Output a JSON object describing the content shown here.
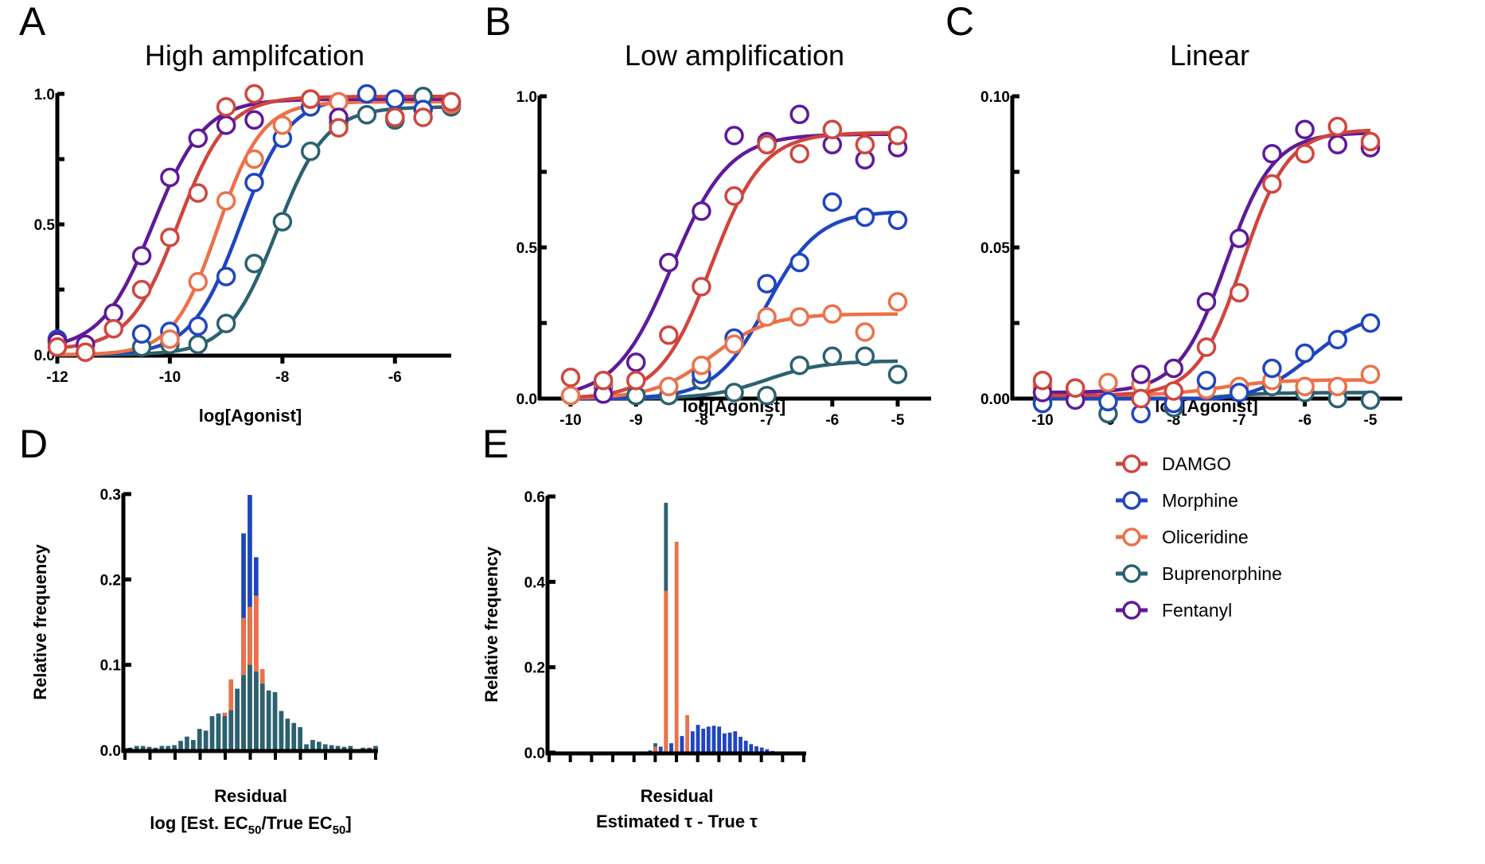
{
  "colors": {
    "DAMGO": "#d0453d",
    "Morphine": "#1f45c0",
    "Oliceridine": "#ec7149",
    "Buprenorphine": "#2b6170",
    "Fentanyl": "#5e1a9a"
  },
  "legend": {
    "entries": [
      "DAMGO",
      "Morphine",
      "Oliceridine",
      "Buprenorphine",
      "Fentanyl"
    ]
  },
  "chart_data": [
    {
      "id": "A",
      "letter": "A",
      "type": "scatter",
      "title": "High amplifcation",
      "xlabel": "log[Agonist]",
      "ylabel": "",
      "xlim": [
        -12,
        -5
      ],
      "ylim": [
        0,
        1.0
      ],
      "xticks": [
        -12,
        -10,
        -8,
        -6
      ],
      "xtick_labels": [
        "-12",
        "-10",
        "-8",
        "-6"
      ],
      "yticks": [
        0,
        0.25,
        0.5,
        0.75,
        1.0
      ],
      "ytick_labels": [
        "0.0",
        "",
        "0.5",
        "",
        "1.0"
      ],
      "series": [
        {
          "name": "Buprenorphine",
          "fit": {
            "bottom": 0,
            "top": 0.95,
            "logEC50": -8.1,
            "hill": 1.0
          },
          "x": [
            -10.5,
            -10,
            -9.5,
            -9,
            -8.5,
            -8,
            -7.5,
            -7,
            -6.5,
            -6,
            -5.5,
            -5
          ],
          "y": [
            0.03,
            0.04,
            0.04,
            0.12,
            0.35,
            0.51,
            0.78,
            0.89,
            0.92,
            0.9,
            0.99,
            0.95
          ]
        },
        {
          "name": "Morphine",
          "fit": {
            "bottom": 0,
            "top": 0.99,
            "logEC50": -8.75,
            "hill": 1.0
          },
          "x": [
            -12,
            -10.5,
            -10,
            -9.5,
            -9,
            -8.5,
            -8,
            -7.5,
            -6.5,
            -6,
            -5.5,
            -5
          ],
          "y": [
            0.06,
            0.08,
            0.09,
            0.11,
            0.3,
            0.66,
            0.83,
            0.95,
            1.0,
            0.98,
            0.94,
            0.96
          ]
        },
        {
          "name": "Oliceridine",
          "fit": {
            "bottom": 0,
            "top": 0.97,
            "logEC50": -9.15,
            "hill": 1.1
          },
          "x": [
            -10,
            -9.5,
            -9,
            -8.5,
            -8,
            -7.5,
            -7,
            -6,
            -5
          ],
          "y": [
            0.06,
            0.28,
            0.59,
            0.75,
            0.88,
            0.98,
            0.97,
            0.91,
            0.96
          ]
        },
        {
          "name": "Fentanyl",
          "fit": {
            "bottom": 0.02,
            "top": 0.98,
            "logEC50": -10.3,
            "hill": 0.95
          },
          "x": [
            -12,
            -11.5,
            -11,
            -10.5,
            -10,
            -9.5,
            -9,
            -8.5,
            -7,
            -5
          ],
          "y": [
            0.05,
            0.04,
            0.16,
            0.38,
            0.68,
            0.83,
            0.88,
            0.9,
            0.91,
            0.97
          ]
        },
        {
          "name": "DAMGO",
          "fit": {
            "bottom": 0.02,
            "top": 0.99,
            "logEC50": -9.85,
            "hill": 1.0
          },
          "x": [
            -12,
            -11.5,
            -11,
            -10.5,
            -10,
            -9.5,
            -9,
            -8.5,
            -7.5,
            -7,
            -6,
            -5.5,
            -5
          ],
          "y": [
            0.03,
            0.01,
            0.1,
            0.25,
            0.45,
            0.62,
            0.95,
            1.0,
            0.98,
            0.87,
            0.91,
            0.91,
            0.97
          ]
        }
      ]
    },
    {
      "id": "B",
      "letter": "B",
      "type": "scatter",
      "title": "Low amplification",
      "xlabel": "log[Agonist]",
      "ylabel": "",
      "xlim": [
        -10.35,
        -4.5
      ],
      "ylim": [
        0,
        1.0
      ],
      "xticks": [
        -10,
        -9,
        -8,
        -7,
        -6,
        -5
      ],
      "xtick_labels": [
        "-10",
        "-9",
        "-8",
        "-7",
        "-6",
        "-5"
      ],
      "yticks": [
        0,
        0.25,
        0.5,
        0.75,
        1.0
      ],
      "ytick_labels": [
        "0.0",
        "",
        "0.5",
        "",
        "1.0"
      ],
      "series": [
        {
          "name": "Buprenorphine",
          "fit": {
            "bottom": 0,
            "top": 0.125,
            "logEC50": -7.0,
            "hill": 1.0
          },
          "x": [
            -9,
            -8.5,
            -8,
            -7.5,
            -7,
            -6.5,
            -6,
            -5.5,
            -5
          ],
          "y": [
            0.01,
            0.01,
            0.06,
            0.02,
            0.01,
            0.11,
            0.14,
            0.14,
            0.08
          ]
        },
        {
          "name": "Morphine",
          "fit": {
            "bottom": 0,
            "top": 0.62,
            "logEC50": -7.0,
            "hill": 1.1
          },
          "x": [
            -9.5,
            -8,
            -7.5,
            -7,
            -6.5,
            -6,
            -5.5,
            -5
          ],
          "y": [
            0.04,
            0.08,
            0.2,
            0.38,
            0.45,
            0.65,
            0.6,
            0.59
          ]
        },
        {
          "name": "Oliceridine",
          "fit": {
            "bottom": 0,
            "top": 0.28,
            "logEC50": -7.85,
            "hill": 1.0
          },
          "x": [
            -10,
            -9.5,
            -8.5,
            -8,
            -7.5,
            -7,
            -6.5,
            -6,
            -5.5,
            -5
          ],
          "y": [
            0.01,
            0.05,
            0.04,
            0.11,
            0.18,
            0.27,
            0.27,
            0.28,
            0.22,
            0.32
          ]
        },
        {
          "name": "Fentanyl",
          "fit": {
            "bottom": 0,
            "top": 0.875,
            "logEC50": -8.45,
            "hill": 1.0
          },
          "x": [
            -9.5,
            -9,
            -8.5,
            -8,
            -7.5,
            -7,
            -6.5,
            -6,
            -5.5,
            -5
          ],
          "y": [
            0.015,
            0.12,
            0.45,
            0.62,
            0.87,
            0.85,
            0.94,
            0.84,
            0.79,
            0.83
          ]
        },
        {
          "name": "DAMGO",
          "fit": {
            "bottom": 0,
            "top": 0.88,
            "logEC50": -7.85,
            "hill": 1.1
          },
          "x": [
            -10,
            -9.5,
            -9,
            -8.5,
            -8,
            -7.5,
            -7,
            -6.5,
            -6,
            -5.5,
            -5
          ],
          "y": [
            0.07,
            0.06,
            0.06,
            0.21,
            0.37,
            0.67,
            0.84,
            0.81,
            0.89,
            0.84,
            0.87
          ]
        }
      ]
    },
    {
      "id": "C",
      "letter": "C",
      "type": "scatter",
      "title": "Linear",
      "xlabel": "log[Agonist]",
      "ylabel": "",
      "xlim": [
        -10.45,
        -4.5
      ],
      "ylim": [
        -0.0053,
        0.1
      ],
      "xticks": [
        -10,
        -9,
        -8,
        -7,
        -6,
        -5
      ],
      "xtick_labels": [
        "-10",
        "-9",
        "-8",
        "-7",
        "-6",
        "-5"
      ],
      "yticks": [
        0,
        0.025,
        0.05,
        0.075,
        0.1
      ],
      "ytick_labels": [
        "0.00",
        "",
        "0.05",
        "",
        "0.10"
      ],
      "series": [
        {
          "name": "Buprenorphine",
          "fit": {
            "bottom": -0.0015,
            "top": 0.002,
            "logEC50": -7.5,
            "hill": 1.0
          },
          "x": [
            -10,
            -9,
            -8,
            -6.5,
            -6,
            -5.5,
            -5
          ],
          "y": [
            -0.001,
            -0.005,
            -0.003,
            0.004,
            0.002,
            0.0,
            -0.0005
          ]
        },
        {
          "name": "Oliceridine",
          "fit": {
            "bottom": 0.001,
            "top": 0.0062,
            "logEC50": -7.3,
            "hill": 1.0
          },
          "x": [
            -10,
            -9,
            -8.5,
            -7.5,
            -7,
            -6.5,
            -6,
            -5.5,
            -5
          ],
          "y": [
            0.004,
            0.0053,
            0.0048,
            0.003,
            0.004,
            0.006,
            0.004,
            0.004,
            0.008
          ]
        },
        {
          "name": "Morphine",
          "fit": {
            "bottom": -0.001,
            "top": 0.029,
            "logEC50": -5.9,
            "hill": 1.0
          },
          "x": [
            -10,
            -9,
            -8.5,
            -8,
            -7.5,
            -7,
            -6.5,
            -6,
            -5.5,
            -5
          ],
          "y": [
            -0.0016,
            -0.001,
            -0.005,
            -0.0016,
            0.006,
            0.002,
            0.01,
            0.015,
            0.0195,
            0.025
          ]
        },
        {
          "name": "Fentanyl",
          "fit": {
            "bottom": 0.002,
            "top": 0.088,
            "logEC50": -7.2,
            "hill": 1.2
          },
          "x": [
            -10,
            -9.5,
            -8.5,
            -8,
            -7.5,
            -7,
            -6.5,
            -6,
            -5.5,
            -5
          ],
          "y": [
            0.002,
            -0.0005,
            0.008,
            0.01,
            0.032,
            0.053,
            0.081,
            0.089,
            0.084,
            0.083
          ]
        },
        {
          "name": "DAMGO",
          "fit": {
            "bottom": 0.001,
            "top": 0.089,
            "logEC50": -6.95,
            "hill": 1.25
          },
          "x": [
            -10,
            -9.5,
            -8.5,
            -8,
            -7.5,
            -7,
            -6.5,
            -6,
            -5.5,
            -5
          ],
          "y": [
            0.006,
            0.0035,
            0.0,
            0.0025,
            0.017,
            0.035,
            0.071,
            0.081,
            0.09,
            0.085
          ]
        }
      ]
    },
    {
      "id": "D",
      "letter": "D",
      "type": "bar",
      "title": "",
      "xlabel_line1": "Residual",
      "xlabel_line2_parts": [
        "log [Est. EC",
        "50",
        "/True EC",
        "50",
        "]"
      ],
      "ylabel": "Relative frequency",
      "ylim": [
        0,
        0.3
      ],
      "yticks": [
        0,
        0.1,
        0.2,
        0.3
      ],
      "ytick_labels": [
        "0.0",
        "0.1",
        "0.2",
        "0.3"
      ],
      "n_xticks": 11,
      "bin_count": 40,
      "series": [
        {
          "name": "Morphine",
          "values": [
            0,
            0,
            0,
            0,
            0,
            0,
            0,
            0,
            0,
            0,
            0,
            0,
            0,
            0,
            0,
            0.002,
            0.002,
            0.002,
            0.254,
            0.299,
            0.226,
            0.002,
            0.002,
            0.002,
            0.001,
            0,
            0,
            0,
            0,
            0,
            0,
            0,
            0,
            0,
            0,
            0,
            0,
            0,
            0,
            0
          ]
        },
        {
          "name": "Oliceridine",
          "values": [
            0,
            0,
            0,
            0,
            0,
            0,
            0,
            0,
            0,
            0,
            0,
            0,
            0,
            0,
            0,
            0.044,
            0.083,
            0.072,
            0.155,
            0.168,
            0.181,
            0.095,
            0,
            0,
            0,
            0,
            0,
            0,
            0,
            0,
            0,
            0,
            0,
            0,
            0,
            0,
            0,
            0,
            0,
            0
          ]
        },
        {
          "name": "Buprenorphine",
          "values": [
            0.003,
            0.005,
            0.005,
            0.004,
            0.003,
            0.005,
            0.005,
            0.006,
            0.011,
            0.016,
            0.012,
            0.025,
            0.023,
            0.04,
            0.043,
            0.04,
            0.047,
            0.072,
            0.088,
            0.1,
            0.092,
            0.078,
            0.07,
            0.068,
            0.046,
            0.037,
            0.032,
            0.027,
            0.007,
            0.012,
            0.01,
            0.007,
            0.006,
            0.005,
            0.004,
            0.005,
            0,
            0.003,
            0.003,
            0.005
          ]
        }
      ]
    },
    {
      "id": "E",
      "letter": "E",
      "type": "bar",
      "title": "",
      "xlabel_line1": "Residual",
      "xlabel_line2": "Estimated τ - True τ",
      "ylabel": "Relative frequency",
      "ylim": [
        0,
        0.6
      ],
      "yticks": [
        0,
        0.2,
        0.4,
        0.6
      ],
      "ytick_labels": [
        "0.0",
        "0.2",
        "0.4",
        "0.6"
      ],
      "n_xticks": 13,
      "bin_count": 48,
      "bin_offset": 16,
      "series": [
        {
          "name": "Morphine",
          "values": [
            0.002,
            0.002,
            0.005,
            0,
            0.014,
            0,
            0.022,
            0,
            0.039,
            0,
            0.05,
            0.065,
            0.056,
            0.061,
            0.063,
            0.061,
            0.045,
            0.047,
            0.05,
            0.037,
            0.028,
            0.02,
            0.015,
            0.012,
            0.008,
            0.004,
            0.002,
            0,
            0.001,
            0.001,
            0.001,
            0
          ]
        },
        {
          "name": "Buprenorphine",
          "values": [
            0,
            0,
            0,
            0.022,
            0,
            0.585,
            0,
            0,
            0,
            0,
            0,
            0,
            0,
            0,
            0,
            0,
            0,
            0,
            0,
            0,
            0,
            0,
            0,
            0,
            0,
            0,
            0,
            0,
            0,
            0,
            0,
            0
          ]
        },
        {
          "name": "Oliceridine",
          "values": [
            0,
            0,
            0,
            0.014,
            0,
            0.379,
            0,
            0.494,
            0,
            0.088,
            0,
            0,
            0,
            0,
            0,
            0,
            0,
            0,
            0,
            0,
            0,
            0,
            0,
            0,
            0,
            0,
            0,
            0,
            0,
            0,
            0,
            0
          ]
        }
      ]
    }
  ]
}
